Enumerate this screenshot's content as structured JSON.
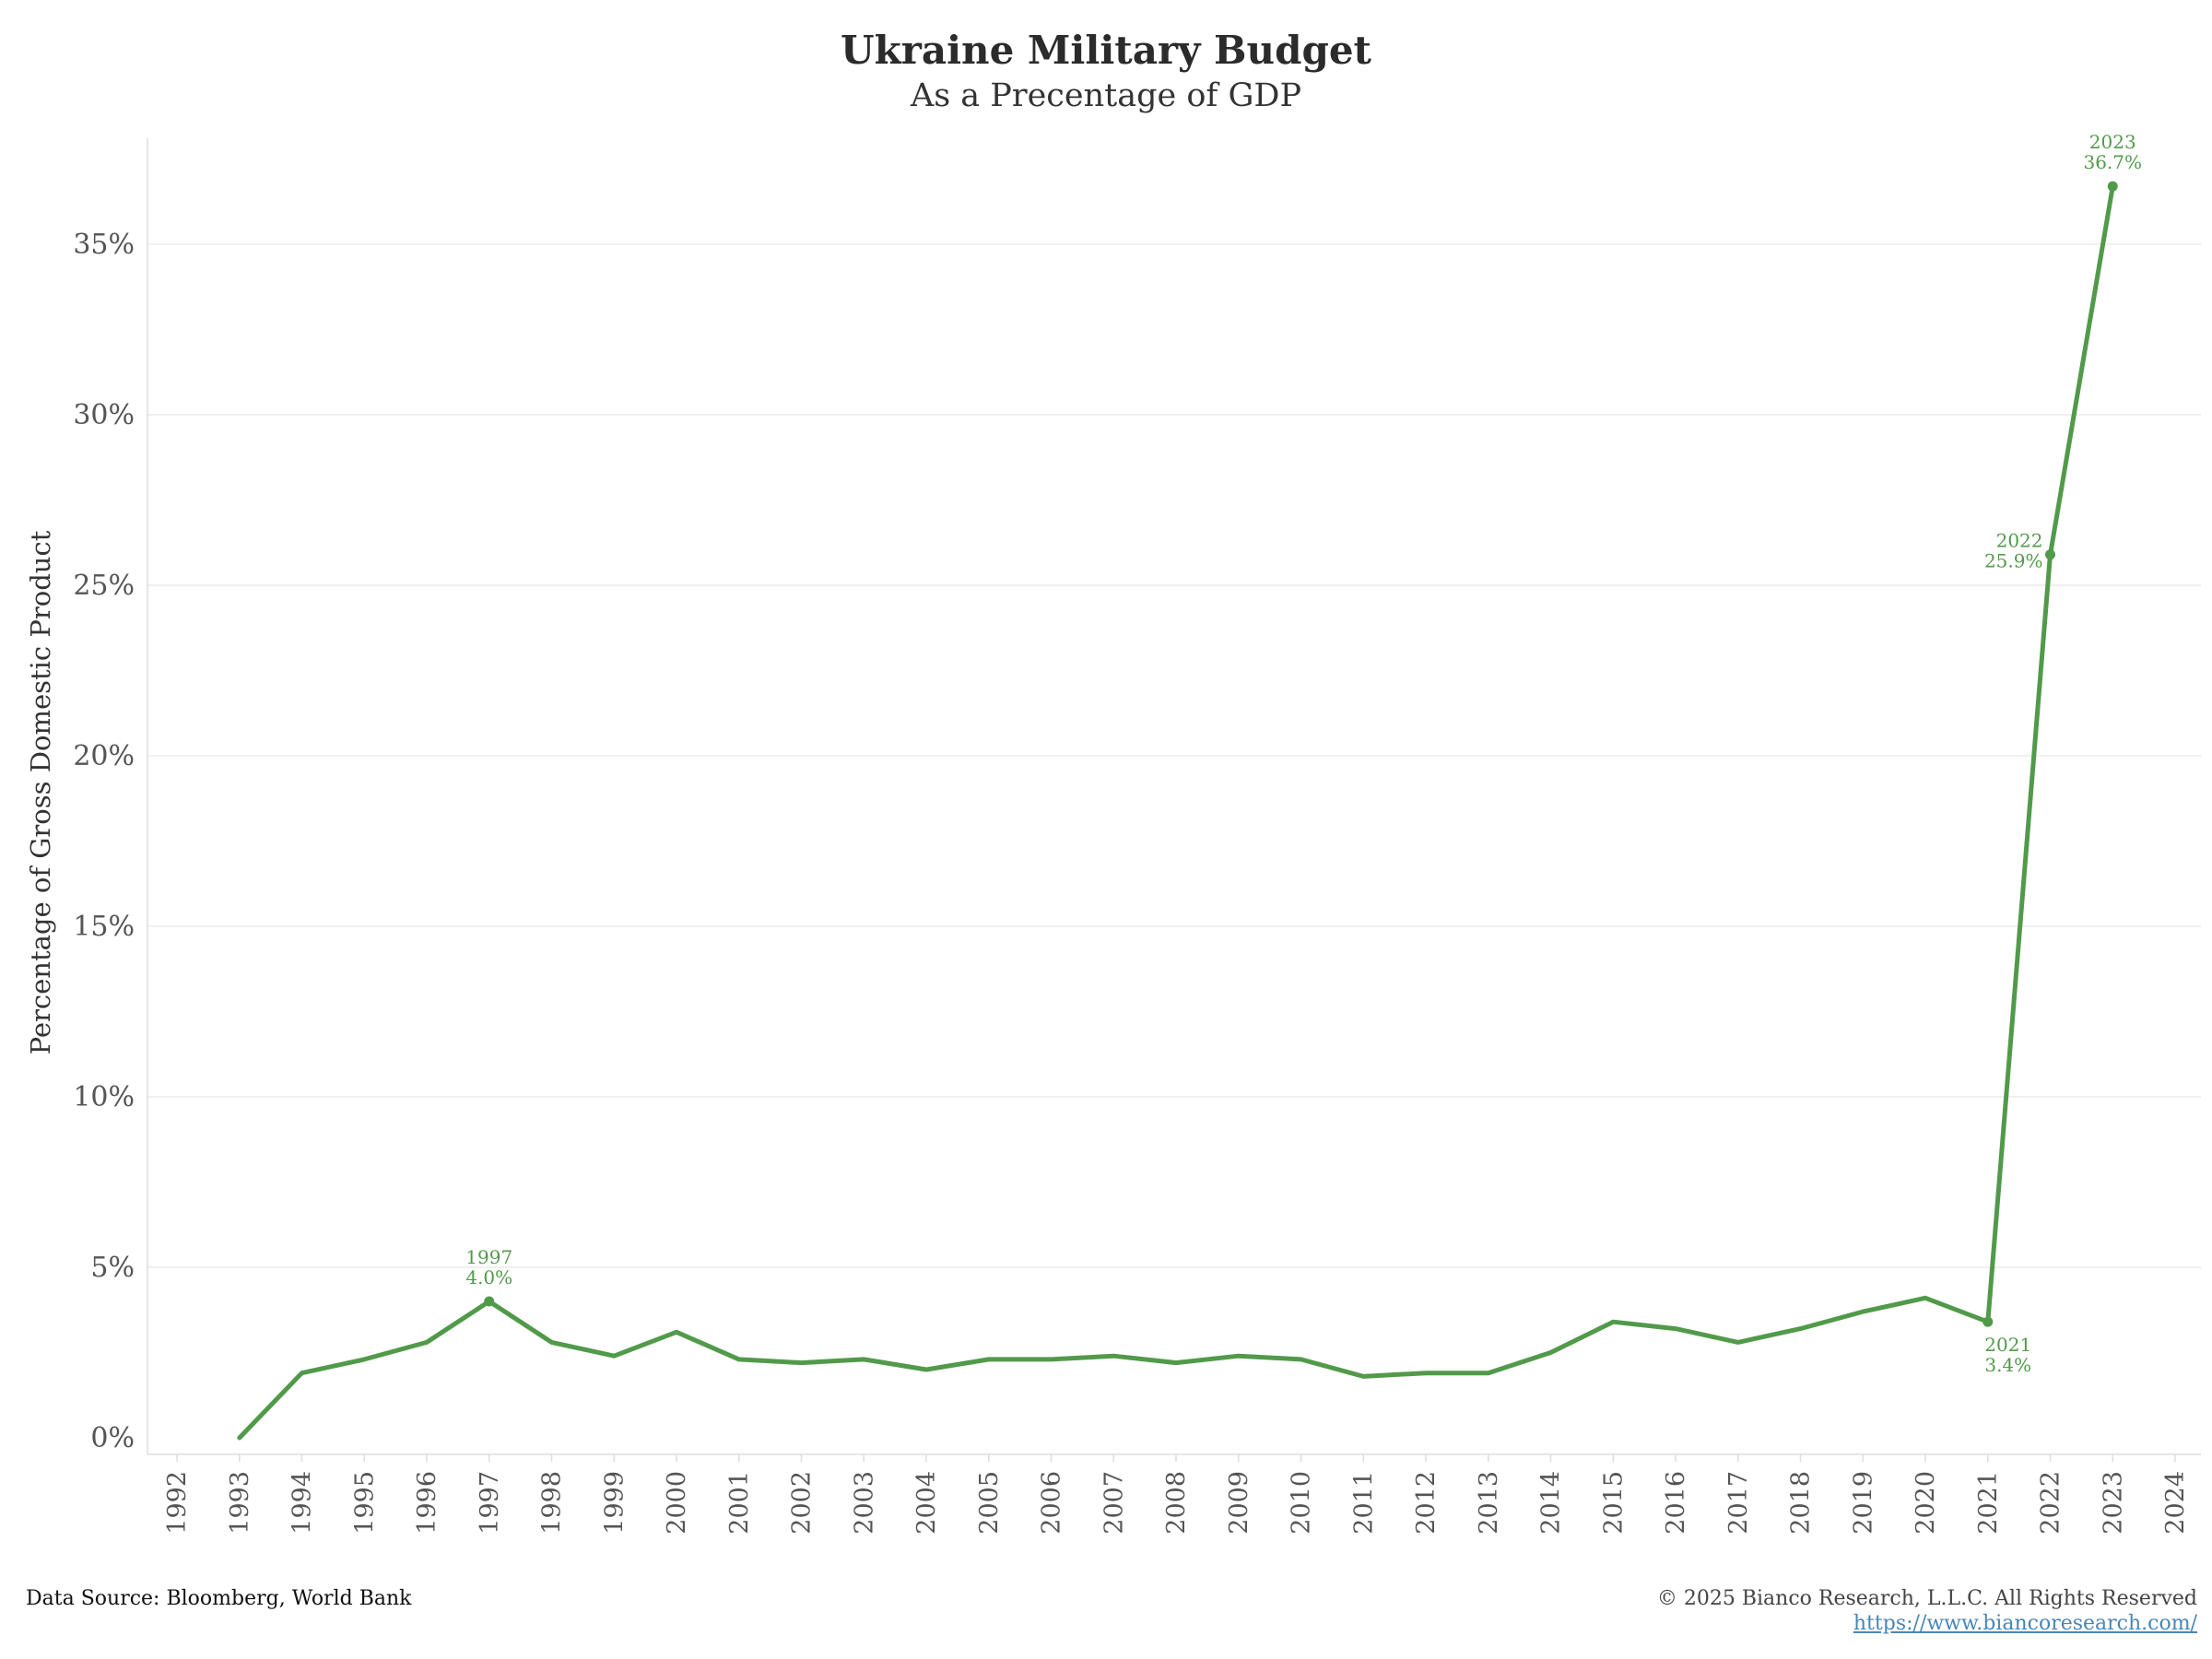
{
  "chart_data": {
    "type": "line",
    "title": "Ukraine Military Budget",
    "subtitle": "As a Precentage of GDP",
    "xlabel": "",
    "ylabel": "Percentage of Gross Domestic Product",
    "xlim": [
      1992,
      2024
    ],
    "ylim": [
      0,
      38
    ],
    "yticks": [
      0,
      5,
      10,
      15,
      20,
      25,
      30,
      35
    ],
    "ytick_labels": [
      "0%",
      "5%",
      "10%",
      "15%",
      "20%",
      "25%",
      "30%",
      "35%"
    ],
    "xtick_labels": [
      "1992",
      "1993",
      "1994",
      "1995",
      "1996",
      "1997",
      "1998",
      "1999",
      "2000",
      "2001",
      "2002",
      "2003",
      "2004",
      "2005",
      "2006",
      "2007",
      "2008",
      "2009",
      "2010",
      "2011",
      "2012",
      "2013",
      "2014",
      "2015",
      "2016",
      "2017",
      "2018",
      "2019",
      "2020",
      "2021",
      "2022",
      "2023",
      "2024"
    ],
    "grid": true,
    "color": "#519a4a",
    "series": [
      {
        "x": [
          1993,
          1994,
          1995,
          1996,
          1997,
          1998,
          1999,
          2000,
          2001,
          2002,
          2003,
          2004,
          2005,
          2006,
          2007,
          2008,
          2009,
          2010,
          2011,
          2012,
          2013,
          2014,
          2015,
          2016,
          2017,
          2018,
          2019,
          2020,
          2021,
          2022,
          2023
        ],
        "values": [
          0.0,
          1.9,
          2.3,
          2.8,
          4.0,
          2.8,
          2.4,
          3.1,
          2.3,
          2.2,
          2.3,
          2.0,
          2.3,
          2.3,
          2.4,
          2.2,
          2.4,
          2.3,
          1.8,
          1.9,
          1.9,
          2.5,
          3.4,
          3.2,
          2.8,
          3.2,
          3.7,
          4.1,
          3.4,
          25.9,
          36.7
        ]
      }
    ],
    "annotations": [
      {
        "x": 1997,
        "year": "1997",
        "value": "4.0%",
        "position": "above"
      },
      {
        "x": 2021,
        "year": "2021",
        "value": "3.4%",
        "position": "below"
      },
      {
        "x": 2022,
        "year": "2022",
        "value": "25.9%",
        "position": "left"
      },
      {
        "x": 2023,
        "year": "2023",
        "value": "36.7%",
        "position": "above"
      }
    ]
  },
  "footer": {
    "source": "Data Source: Bloomberg, World Bank",
    "copyright": "© 2025 Bianco Research, L.L.C. All Rights Reserved",
    "url": "https://www.biancoresearch.com/"
  }
}
